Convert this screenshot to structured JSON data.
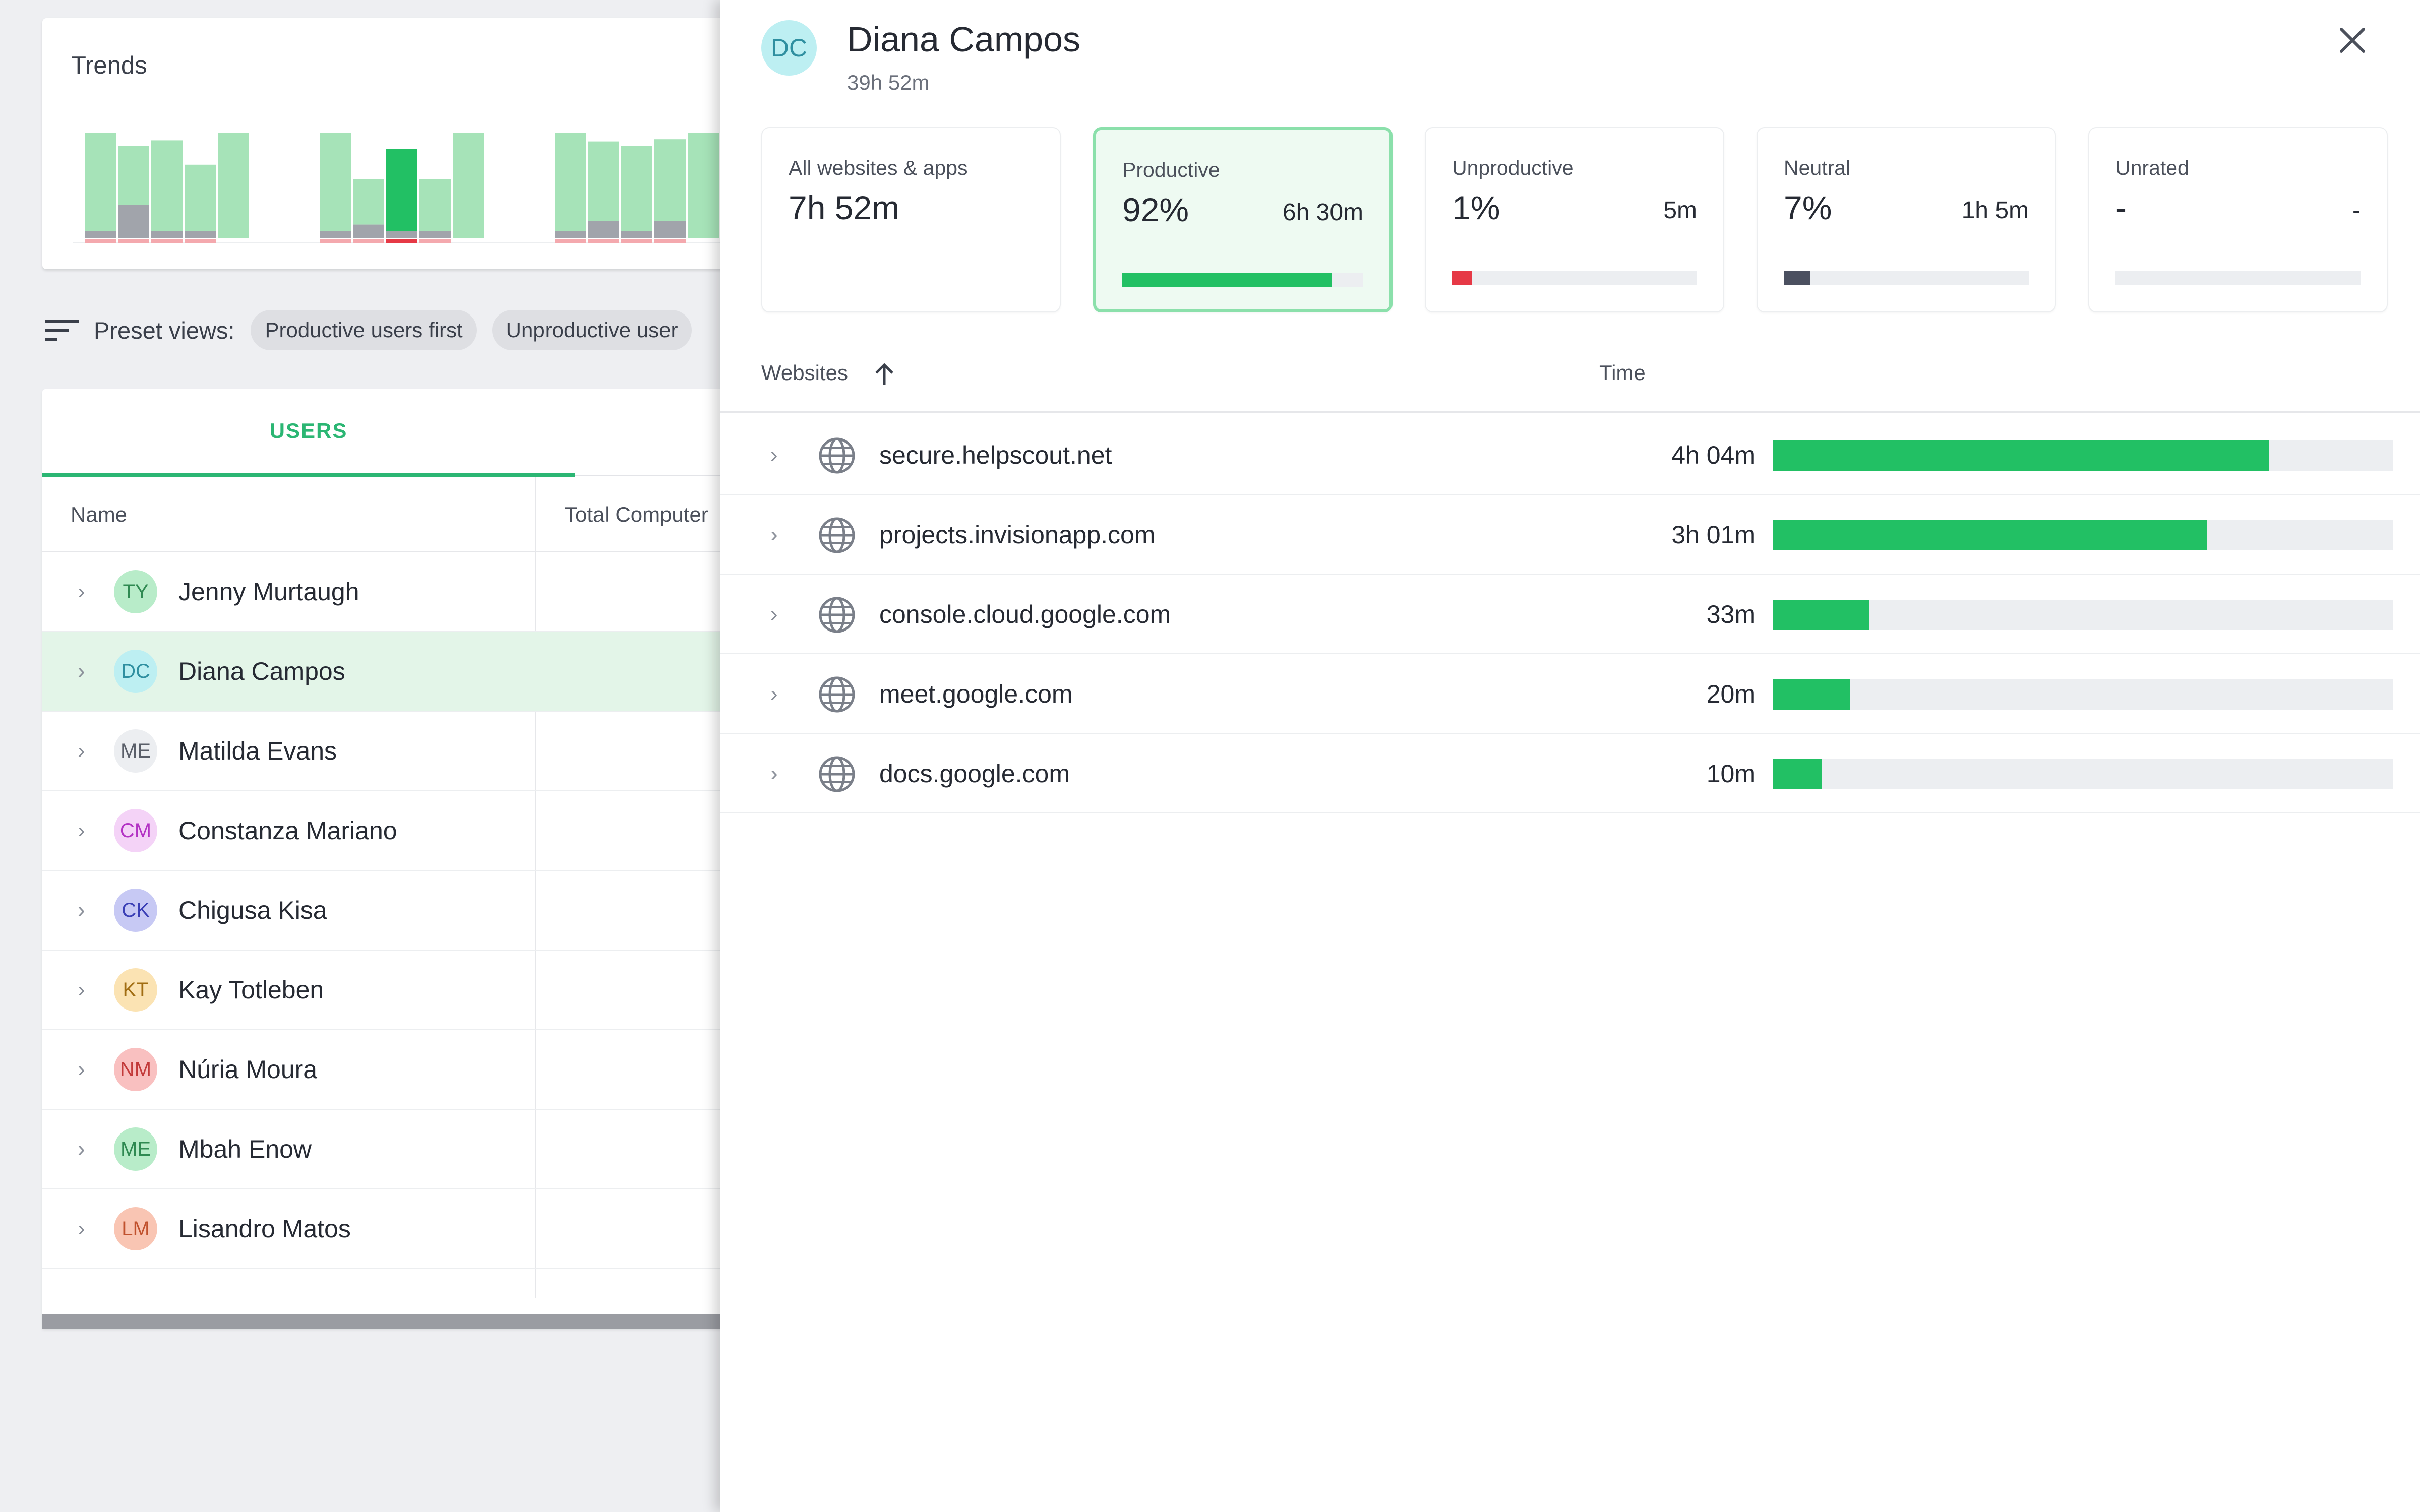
{
  "trends": {
    "title": "Trends",
    "colors": {
      "productive": "#a6e3b8",
      "neutral": "#a1a4ab",
      "unproductive": "#f4a9ae",
      "highlight": "#22c064",
      "highlight_red": "#e63946"
    }
  },
  "preset_views": {
    "label": "Preset views:",
    "chips": [
      "Productive users first",
      "Unproductive user"
    ]
  },
  "users_table": {
    "tab": "USERS",
    "columns": {
      "name": "Name",
      "total": "Total Computer"
    },
    "rows": [
      {
        "initials": "TY",
        "name": "Jenny Murtaugh",
        "bg": "#b8ecc9",
        "fg": "#2f8a52"
      },
      {
        "initials": "DC",
        "name": "Diana Campos",
        "bg": "#bdeff2",
        "fg": "#2f8fa0",
        "selected": true
      },
      {
        "initials": "ME",
        "name": "Matilda Evans",
        "bg": "#eceef1",
        "fg": "#5a5f69"
      },
      {
        "initials": "CM",
        "name": "Constanza Mariano",
        "bg": "#f4d3f7",
        "fg": "#b333c4"
      },
      {
        "initials": "CK",
        "name": "Chigusa Kisa",
        "bg": "#c7c9f4",
        "fg": "#3a3fb5"
      },
      {
        "initials": "KT",
        "name": "Kay Totleben",
        "bg": "#fbe3b3",
        "fg": "#a16d12"
      },
      {
        "initials": "NM",
        "name": "Núria Moura",
        "bg": "#f9c0c0",
        "fg": "#c33a3a"
      },
      {
        "initials": "ME",
        "name": "Mbah Enow",
        "bg": "#b8ecc9",
        "fg": "#2f8a52"
      },
      {
        "initials": "LM",
        "name": "Lisandro Matos",
        "bg": "#f9c5b3",
        "fg": "#c0512d"
      }
    ]
  },
  "drawer": {
    "initials": "DC",
    "name": "Diana Campos",
    "total": "39h 52m",
    "stats": [
      {
        "label": "All websites & apps",
        "value": "7h 52m",
        "time": "",
        "fraction": null,
        "color": ""
      },
      {
        "label": "Productive",
        "value": "92%",
        "time": "6h 30m",
        "fraction": 0.87,
        "color": "#22c064",
        "active": true
      },
      {
        "label": "Unproductive",
        "value": "1%",
        "time": "5m",
        "fraction": 0.08,
        "color": "#e63946"
      },
      {
        "label": "Neutral",
        "value": "7%",
        "time": "1h 5m",
        "fraction": 0.11,
        "color": "#4b5060"
      },
      {
        "label": "Unrated",
        "value": "-",
        "time": "-",
        "fraction": 0,
        "color": "#eceef1"
      }
    ],
    "list_header": {
      "websites": "Websites",
      "time": "Time"
    },
    "sites": [
      {
        "name": "secure.helpscout.net",
        "time": "4h 04m",
        "fraction": 0.8
      },
      {
        "name": "projects.invisionapp.com",
        "time": "3h 01m",
        "fraction": 0.7
      },
      {
        "name": "console.cloud.google.com",
        "time": "33m",
        "fraction": 0.155
      },
      {
        "name": "meet.google.com",
        "time": "20m",
        "fraction": 0.125
      },
      {
        "name": "docs.google.com",
        "time": "10m",
        "fraction": 0.08
      }
    ]
  }
}
